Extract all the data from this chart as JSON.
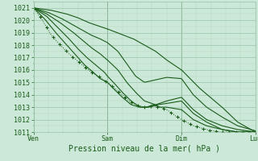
{
  "title": "Pression niveau de la mer( hPa )",
  "bg_color": "#cce8d8",
  "grid_color_major": "#99c4aa",
  "grid_color_minor": "#b8d9c4",
  "line_color": "#1a5c1a",
  "xlim": [
    0,
    1
  ],
  "ylim": [
    1011,
    1021.5
  ],
  "yticks": [
    1011,
    1012,
    1013,
    1014,
    1015,
    1016,
    1017,
    1018,
    1019,
    1020,
    1021
  ],
  "xtick_labels": [
    "Ven",
    "Sam",
    "Dim",
    "Lun"
  ],
  "xtick_positions": [
    0.0,
    0.333,
    0.667,
    1.0
  ],
  "label_fontsize": 7,
  "tick_fontsize": 6,
  "lines": [
    {
      "xp": [
        0.0,
        0.08,
        0.15,
        0.2,
        0.25,
        0.333,
        0.45,
        0.5,
        0.55,
        0.6,
        0.667,
        0.75,
        0.85,
        0.92,
        1.0
      ],
      "yp": [
        1021,
        1020.8,
        1020.5,
        1020.2,
        1019.8,
        1019.3,
        1018.5,
        1018.0,
        1017.5,
        1016.8,
        1016.0,
        1014.5,
        1013.0,
        1011.8,
        1011.0
      ],
      "lw": 0.8,
      "ls": "-",
      "marker": null
    },
    {
      "xp": [
        0.0,
        0.07,
        0.13,
        0.18,
        0.22,
        0.26,
        0.3,
        0.333,
        0.38,
        0.42,
        0.46,
        0.5,
        0.55,
        0.6,
        0.667,
        0.72,
        0.78,
        0.85,
        0.92,
        1.0
      ],
      "yp": [
        1021,
        1020.6,
        1020.1,
        1019.6,
        1019.2,
        1018.8,
        1018.5,
        1018.2,
        1017.5,
        1016.5,
        1015.5,
        1015.0,
        1015.2,
        1015.4,
        1015.3,
        1014.0,
        1013.0,
        1012.2,
        1011.5,
        1011.1
      ],
      "lw": 0.8,
      "ls": "-",
      "marker": null
    },
    {
      "xp": [
        0.0,
        0.06,
        0.12,
        0.18,
        0.22,
        0.26,
        0.3,
        0.333,
        0.38,
        0.42,
        0.46,
        0.5,
        0.55,
        0.6,
        0.667,
        0.72,
        0.78,
        0.85,
        0.92,
        1.0
      ],
      "yp": [
        1021,
        1020.5,
        1019.8,
        1019.0,
        1018.4,
        1017.8,
        1017.3,
        1016.8,
        1016.0,
        1015.0,
        1014.2,
        1013.5,
        1013.2,
        1013.5,
        1013.8,
        1012.8,
        1012.0,
        1011.5,
        1011.2,
        1011.0
      ],
      "lw": 0.8,
      "ls": "-",
      "marker": null
    },
    {
      "xp": [
        0.0,
        0.06,
        0.11,
        0.16,
        0.2,
        0.24,
        0.28,
        0.32,
        0.333,
        0.36,
        0.4,
        0.44,
        0.48,
        0.52,
        0.56,
        0.6,
        0.667,
        0.72,
        0.78,
        0.85,
        0.92,
        1.0
      ],
      "yp": [
        1021,
        1020.3,
        1019.4,
        1018.5,
        1017.7,
        1017.0,
        1016.4,
        1015.8,
        1015.5,
        1015.0,
        1014.2,
        1013.5,
        1013.0,
        1013.0,
        1013.2,
        1013.3,
        1013.5,
        1012.5,
        1011.8,
        1011.2,
        1011.0,
        1011.0
      ],
      "lw": 0.8,
      "ls": "-",
      "marker": null
    },
    {
      "xp": [
        0.0,
        0.05,
        0.1,
        0.15,
        0.19,
        0.23,
        0.27,
        0.3,
        0.333,
        0.36,
        0.4,
        0.44,
        0.48,
        0.51,
        0.54,
        0.57,
        0.6,
        0.667,
        0.72,
        0.78,
        0.85,
        0.92,
        1.0
      ],
      "yp": [
        1021,
        1020.1,
        1019.0,
        1018.0,
        1017.2,
        1016.4,
        1015.8,
        1015.3,
        1015.0,
        1014.5,
        1013.8,
        1013.2,
        1013.0,
        1013.0,
        1013.2,
        1013.0,
        1013.0,
        1012.8,
        1012.0,
        1011.5,
        1011.2,
        1011.0,
        1011.0
      ],
      "lw": 0.8,
      "ls": "-",
      "marker": null
    },
    {
      "xp": [
        0.0,
        0.04,
        0.08,
        0.12,
        0.16,
        0.2,
        0.24,
        0.27,
        0.3,
        0.333,
        0.36,
        0.4,
        0.43,
        0.46,
        0.5,
        0.54,
        0.57,
        0.6,
        0.64,
        0.667,
        0.72,
        0.78,
        0.84,
        0.9,
        1.0
      ],
      "yp": [
        1021,
        1020.0,
        1018.8,
        1018.0,
        1017.3,
        1016.7,
        1016.1,
        1015.7,
        1015.4,
        1015.0,
        1014.6,
        1014.0,
        1013.5,
        1013.2,
        1013.0,
        1013.1,
        1013.0,
        1012.8,
        1012.3,
        1012.0,
        1011.5,
        1011.2,
        1011.0,
        1011.0,
        1011.0
      ],
      "lw": 0.7,
      "ls": ":",
      "marker": "D"
    }
  ]
}
